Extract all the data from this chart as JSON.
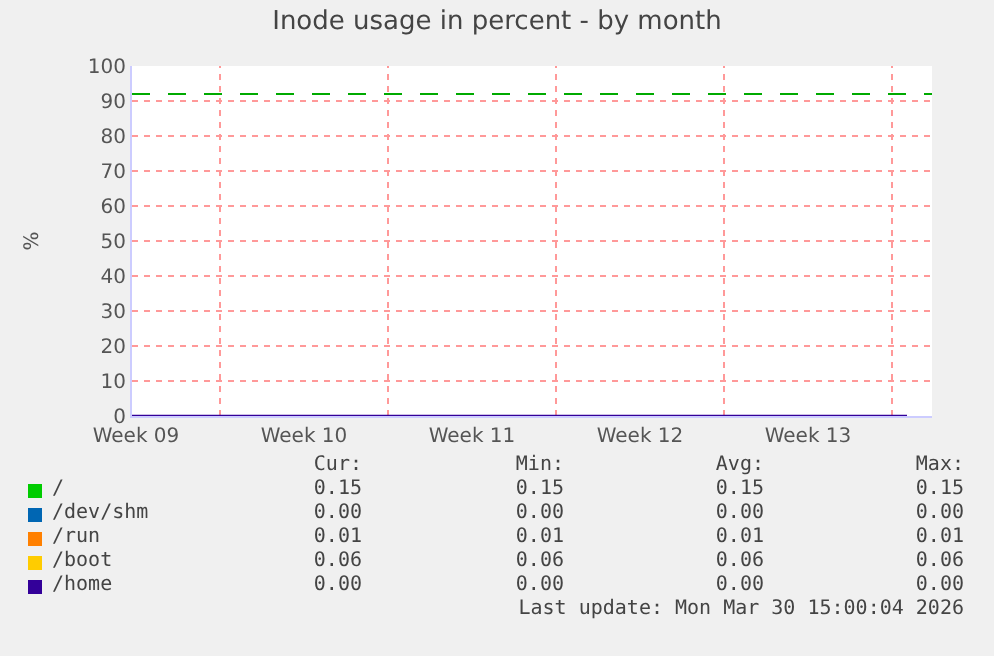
{
  "chart_data": {
    "type": "line",
    "title": "Inode usage in percent - by month",
    "ylabel": "%",
    "x": [
      "2026-02-26T08:00",
      "2026-03-30T15:00"
    ],
    "series": [
      {
        "name": "/",
        "color": "#00cc00",
        "values": [
          null,
          null
        ]
      },
      {
        "name": "/dev/shm",
        "color": "#0066b3",
        "values": [
          null,
          null
        ]
      },
      {
        "name": "/run",
        "color": "#ff8000",
        "values": [
          null,
          null
        ]
      },
      {
        "name": "/boot",
        "color": "#ffcc00",
        "values": [
          null,
          null
        ]
      },
      {
        "name": "/home",
        "color": "#330099",
        "values": [
          0,
          0
        ]
      }
    ],
    "xlim": [
      "2026-02-26T08:00",
      "2026-03-31T16:00"
    ],
    "xticks": [
      {
        "value": "2026-02-26T12:00",
        "label": "Week 09"
      },
      {
        "value": "2026-03-02",
        "label": null
      },
      {
        "value": "2026-03-05T12:00",
        "label": "Week 10"
      },
      {
        "value": "2026-03-09",
        "label": null
      },
      {
        "value": "2026-03-12T12:00",
        "label": "Week 11"
      },
      {
        "value": "2026-03-16",
        "label": null
      },
      {
        "value": "2026-03-19T12:00",
        "label": "Week 12"
      },
      {
        "value": "2026-03-23",
        "label": null
      },
      {
        "value": "2026-03-26T12:00",
        "label": "Week 13"
      },
      {
        "value": "2026-03-30",
        "label": null
      }
    ],
    "ylim": [
      0,
      100
    ],
    "yticks": [
      0,
      10,
      20,
      30,
      40,
      50,
      60,
      70,
      80,
      90,
      100
    ],
    "grid": true,
    "legend": "bottom",
    "line_style": "solid",
    "marker": "none",
    "ref_lines": [
      {
        "axis": "y",
        "value": 92,
        "color": "#00aa00",
        "line_style": "dashed"
      }
    ],
    "annotations": [
      "Cur:",
      "Min:",
      "Avg:",
      "Max:",
      "0.15",
      "0.15",
      "0.15",
      "0.15",
      "0.00",
      "0.00",
      "0.00",
      "0.00",
      "0.01",
      "0.01",
      "0.01",
      "0.01",
      "0.06",
      "0.06",
      "0.06",
      "0.06",
      "0.00",
      "0.00",
      "0.00",
      "0.00",
      "Last update: Mon Mar 30 15:00:04 2026"
    ]
  }
}
